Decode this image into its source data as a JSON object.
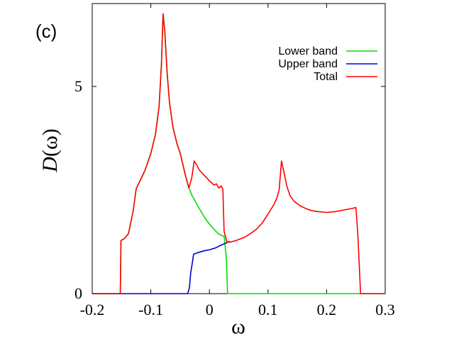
{
  "chart_data": {
    "type": "line",
    "panel_label": "(c)",
    "xlabel": "ω",
    "ylabel_symbol": "D",
    "ylabel_arg": "(ω)",
    "xlim": [
      -0.2,
      0.3
    ],
    "ylim": [
      0,
      7
    ],
    "x_ticks": [
      -0.2,
      -0.1,
      0,
      0.1,
      0.2,
      0.3
    ],
    "x_tick_labels": [
      "-0.2",
      "-0.1",
      "0",
      "0.1",
      "0.2",
      "0.3"
    ],
    "y_ticks": [
      0,
      5
    ],
    "y_tick_labels": [
      "0",
      "5"
    ],
    "legend_position": "top-right",
    "series": [
      {
        "name": "Lower band",
        "color": "#00dd00",
        "points": [
          [
            -0.2,
            0
          ],
          [
            -0.152,
            0
          ],
          [
            -0.151,
            1.28
          ],
          [
            -0.145,
            1.33
          ],
          [
            -0.138,
            1.45
          ],
          [
            -0.13,
            2.0
          ],
          [
            -0.125,
            2.53
          ],
          [
            -0.11,
            2.97
          ],
          [
            -0.1,
            3.38
          ],
          [
            -0.092,
            3.85
          ],
          [
            -0.086,
            4.5
          ],
          [
            -0.082,
            5.5
          ],
          [
            -0.079,
            6.75
          ],
          [
            -0.076,
            6.3
          ],
          [
            -0.072,
            5.3
          ],
          [
            -0.068,
            4.6
          ],
          [
            -0.062,
            4.0
          ],
          [
            -0.055,
            3.6
          ],
          [
            -0.05,
            3.4
          ],
          [
            -0.045,
            3.1
          ],
          [
            -0.04,
            2.8
          ],
          [
            -0.035,
            2.55
          ],
          [
            -0.03,
            2.38
          ],
          [
            -0.025,
            2.25
          ],
          [
            -0.02,
            2.12
          ],
          [
            -0.015,
            2.0
          ],
          [
            -0.01,
            1.88
          ],
          [
            -0.005,
            1.77
          ],
          [
            0,
            1.68
          ],
          [
            0.005,
            1.6
          ],
          [
            0.01,
            1.52
          ],
          [
            0.015,
            1.45
          ],
          [
            0.02,
            1.41
          ],
          [
            0.025,
            1.38
          ],
          [
            0.026,
            1.28
          ],
          [
            0.029,
            0.8
          ],
          [
            0.031,
            0
          ],
          [
            0.3,
            0
          ]
        ]
      },
      {
        "name": "Upper band",
        "color": "#0000cc",
        "points": [
          [
            -0.2,
            0
          ],
          [
            -0.037,
            0
          ],
          [
            -0.034,
            0.15
          ],
          [
            -0.032,
            0.5
          ],
          [
            -0.029,
            0.75
          ],
          [
            -0.027,
            0.95
          ],
          [
            -0.02,
            0.99
          ],
          [
            -0.01,
            1.03
          ],
          [
            0,
            1.06
          ],
          [
            0.01,
            1.1
          ],
          [
            0.02,
            1.17
          ],
          [
            0.028,
            1.22
          ],
          [
            0.035,
            1.26
          ]
        ]
      },
      {
        "name": "Total",
        "color": "#ff0000",
        "points": [
          [
            -0.2,
            0
          ],
          [
            -0.152,
            0
          ],
          [
            -0.151,
            1.28
          ],
          [
            -0.145,
            1.33
          ],
          [
            -0.138,
            1.45
          ],
          [
            -0.13,
            2.0
          ],
          [
            -0.125,
            2.53
          ],
          [
            -0.11,
            2.97
          ],
          [
            -0.1,
            3.38
          ],
          [
            -0.092,
            3.85
          ],
          [
            -0.086,
            4.5
          ],
          [
            -0.082,
            5.5
          ],
          [
            -0.079,
            6.75
          ],
          [
            -0.076,
            6.3
          ],
          [
            -0.072,
            5.3
          ],
          [
            -0.068,
            4.6
          ],
          [
            -0.062,
            4.0
          ],
          [
            -0.055,
            3.6
          ],
          [
            -0.05,
            3.4
          ],
          [
            -0.045,
            3.1
          ],
          [
            -0.04,
            2.8
          ],
          [
            -0.035,
            2.55
          ],
          [
            -0.03,
            2.8
          ],
          [
            -0.026,
            3.2
          ],
          [
            -0.022,
            3.12
          ],
          [
            -0.018,
            3.0
          ],
          [
            -0.012,
            2.9
          ],
          [
            -0.005,
            2.8
          ],
          [
            0,
            2.72
          ],
          [
            0.008,
            2.62
          ],
          [
            0.012,
            2.65
          ],
          [
            0.016,
            2.55
          ],
          [
            0.02,
            2.6
          ],
          [
            0.023,
            2.52
          ],
          [
            0.025,
            1.5
          ],
          [
            0.03,
            1.25
          ],
          [
            0.035,
            1.24
          ],
          [
            0.045,
            1.28
          ],
          [
            0.06,
            1.36
          ],
          [
            0.07,
            1.45
          ],
          [
            0.08,
            1.55
          ],
          [
            0.09,
            1.7
          ],
          [
            0.1,
            1.92
          ],
          [
            0.11,
            2.15
          ],
          [
            0.115,
            2.3
          ],
          [
            0.119,
            2.5
          ],
          [
            0.123,
            3.2
          ],
          [
            0.127,
            2.95
          ],
          [
            0.132,
            2.6
          ],
          [
            0.138,
            2.35
          ],
          [
            0.145,
            2.22
          ],
          [
            0.155,
            2.12
          ],
          [
            0.165,
            2.05
          ],
          [
            0.175,
            2.0
          ],
          [
            0.185,
            1.98
          ],
          [
            0.2,
            1.96
          ],
          [
            0.215,
            1.98
          ],
          [
            0.23,
            2.02
          ],
          [
            0.245,
            2.06
          ],
          [
            0.25,
            2.08
          ],
          [
            0.253,
            1.5
          ],
          [
            0.256,
            0.6
          ],
          [
            0.258,
            0
          ],
          [
            0.3,
            0
          ]
        ]
      }
    ]
  }
}
